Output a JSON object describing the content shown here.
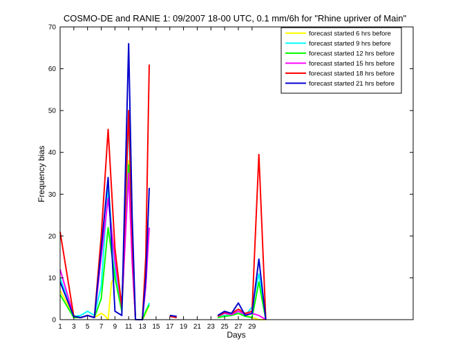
{
  "chart_data": {
    "type": "line",
    "title": "COSMO-DE and RANIE 1: 09/2007 18-00 UTC, 0.1 mm/6h for \"Rhine upriver of Main\"",
    "xlabel": "Days",
    "ylabel": "Frequency bias",
    "xlim": [
      1,
      52.5
    ],
    "ylim": [
      0,
      70
    ],
    "xticks": [
      1,
      3,
      5,
      7,
      9,
      11,
      13,
      15,
      17,
      19,
      21,
      23,
      25,
      27,
      29
    ],
    "yticks": [
      0,
      10,
      20,
      30,
      40,
      50,
      60,
      70
    ],
    "grid": false,
    "legend_position": "top-right",
    "series": [
      {
        "name": "forecast started 6 hrs before",
        "color": "#ffff00",
        "points": [
          [
            1,
            7
          ],
          [
            3,
            1
          ],
          [
            4,
            0.5
          ],
          [
            5,
            1
          ],
          [
            6,
            0.5
          ],
          [
            7,
            1.5
          ],
          [
            7.5,
            1
          ],
          [
            8,
            0
          ],
          [
            8.5,
            9
          ],
          [
            9,
            10
          ],
          [
            10,
            3
          ],
          [
            11,
            38
          ],
          [
            11.5,
            15
          ],
          [
            12,
            0
          ],
          [
            13,
            0
          ],
          [
            13.5,
            1.5
          ],
          [
            14,
            3.5
          ],
          null,
          [
            17,
            0.8
          ],
          [
            18,
            0.5
          ],
          null,
          [
            24,
            0.8
          ],
          [
            25,
            1
          ],
          [
            26,
            1.2
          ],
          [
            27,
            1.5
          ],
          [
            28,
            1
          ],
          [
            29,
            0.5
          ],
          [
            30,
            0
          ],
          [
            31,
            0
          ]
        ]
      },
      {
        "name": "forecast started 9 hrs before",
        "color": "#00ffff",
        "points": [
          [
            1,
            10
          ],
          [
            3,
            0.8
          ],
          [
            4,
            1
          ],
          [
            5,
            2
          ],
          [
            6,
            1
          ],
          [
            7,
            8
          ],
          [
            8,
            32
          ],
          [
            9,
            12
          ],
          [
            10,
            3
          ],
          [
            11,
            48
          ],
          [
            11.5,
            20
          ],
          [
            12,
            0
          ],
          [
            13,
            0
          ],
          [
            13.5,
            2
          ],
          [
            14,
            4
          ],
          null,
          [
            17,
            0.8
          ],
          [
            18,
            0.5
          ],
          null,
          [
            24,
            0.5
          ],
          [
            25,
            1
          ],
          [
            26,
            1
          ],
          [
            27,
            2
          ],
          [
            28,
            1
          ],
          [
            29,
            3
          ],
          [
            30,
            11
          ],
          [
            31,
            0
          ]
        ]
      },
      {
        "name": "forecast started 12 hrs before",
        "color": "#00ff00",
        "points": [
          [
            1,
            6
          ],
          [
            3,
            0.5
          ],
          [
            4,
            0.5
          ],
          [
            5,
            1
          ],
          [
            6,
            0.5
          ],
          [
            7,
            5
          ],
          [
            8,
            22
          ],
          [
            9,
            10
          ],
          [
            10,
            2
          ],
          [
            11,
            37
          ],
          [
            11.5,
            15
          ],
          [
            12,
            0
          ],
          [
            13,
            0
          ],
          [
            13.5,
            2
          ],
          [
            14,
            3.5
          ],
          null,
          [
            17,
            0.8
          ],
          [
            18,
            0.5
          ],
          null,
          [
            24,
            0.5
          ],
          [
            25,
            0.8
          ],
          [
            26,
            1
          ],
          [
            27,
            1.5
          ],
          [
            28,
            0.8
          ],
          [
            29,
            0.5
          ],
          [
            30,
            9
          ],
          [
            31,
            0
          ]
        ]
      },
      {
        "name": "forecast started 15 hrs before",
        "color": "#ff00ff",
        "points": [
          [
            1,
            12
          ],
          [
            3,
            0.8
          ],
          [
            4,
            0.5
          ],
          [
            5,
            1
          ],
          [
            6,
            0.5
          ],
          [
            7,
            15
          ],
          [
            8,
            29
          ],
          [
            9,
            14
          ],
          [
            10,
            3
          ],
          [
            11,
            35
          ],
          [
            11.5,
            14
          ],
          [
            12,
            0
          ],
          [
            13,
            0
          ],
          [
            13.5,
            8
          ],
          [
            14,
            22
          ],
          null,
          [
            17,
            0.8
          ],
          [
            18,
            0.5
          ],
          null,
          [
            24,
            0.8
          ],
          [
            25,
            1.5
          ],
          [
            26,
            1.2
          ],
          [
            27,
            2
          ],
          [
            28,
            1.2
          ],
          [
            29,
            1.5
          ],
          [
            30,
            1
          ],
          [
            31,
            0
          ]
        ]
      },
      {
        "name": "forecast started 18 hrs before",
        "color": "#ff0000",
        "points": [
          [
            1,
            21
          ],
          [
            3,
            0.8
          ],
          [
            4,
            0.5
          ],
          [
            5,
            1
          ],
          [
            6,
            0.5
          ],
          [
            7,
            20
          ],
          [
            8,
            45.5
          ],
          [
            9,
            17
          ],
          [
            10,
            3
          ],
          [
            11,
            50
          ],
          [
            11.5,
            20
          ],
          [
            12,
            0
          ],
          [
            13,
            0
          ],
          [
            13.5,
            15
          ],
          [
            14,
            61
          ],
          null,
          [
            17,
            0.8
          ],
          [
            18,
            0.5
          ],
          null,
          [
            24,
            0.8
          ],
          [
            25,
            1.8
          ],
          [
            26,
            1.5
          ],
          [
            27,
            2.5
          ],
          [
            28,
            1.5
          ],
          [
            29,
            2
          ],
          [
            30,
            39.5
          ],
          [
            31,
            0
          ]
        ]
      },
      {
        "name": "forecast started 21 hrs before",
        "color": "#0000cc",
        "points": [
          [
            1,
            9
          ],
          [
            3,
            0.8
          ],
          [
            4,
            0.5
          ],
          [
            5,
            1
          ],
          [
            6,
            0.5
          ],
          [
            7,
            17
          ],
          [
            8,
            34
          ],
          [
            9,
            2
          ],
          [
            10,
            1
          ],
          [
            11,
            66
          ],
          [
            11.5,
            25
          ],
          [
            12,
            0
          ],
          [
            13,
            0
          ],
          [
            13.5,
            10
          ],
          [
            14,
            31.5
          ],
          null,
          [
            17,
            1
          ],
          [
            18,
            0.8
          ],
          null,
          [
            24,
            1
          ],
          [
            25,
            2
          ],
          [
            26,
            1.5
          ],
          [
            27,
            4
          ],
          [
            28,
            1
          ],
          [
            29,
            1.5
          ],
          [
            30,
            14.5
          ],
          [
            31,
            0
          ]
        ]
      }
    ]
  }
}
